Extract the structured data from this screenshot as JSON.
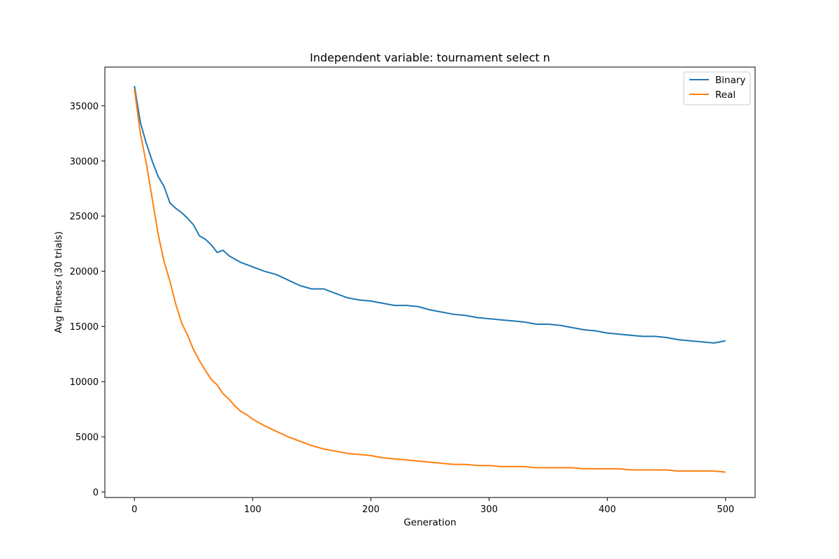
{
  "chart_data": {
    "type": "line",
    "title": "Independent variable: tournament select n",
    "xlabel": "Generation",
    "ylabel": "Avg Fitness (30 trials)",
    "xlim": [
      -25,
      525
    ],
    "ylim": [
      -500,
      38500
    ],
    "xticks": [
      0,
      100,
      200,
      300,
      400,
      500
    ],
    "yticks": [
      0,
      5000,
      10000,
      15000,
      20000,
      25000,
      30000,
      35000
    ],
    "grid": false,
    "legend_position": "top-right",
    "series": [
      {
        "name": "Binary",
        "color": "#1f77b4",
        "x": [
          0,
          5,
          10,
          15,
          20,
          25,
          30,
          35,
          40,
          45,
          50,
          55,
          60,
          65,
          70,
          75,
          80,
          85,
          90,
          95,
          100,
          110,
          120,
          130,
          140,
          150,
          160,
          170,
          180,
          190,
          200,
          210,
          220,
          230,
          240,
          250,
          260,
          270,
          280,
          290,
          300,
          310,
          320,
          330,
          340,
          350,
          360,
          370,
          380,
          390,
          400,
          410,
          420,
          430,
          440,
          450,
          460,
          470,
          480,
          490,
          500
        ],
        "y": [
          36800,
          33500,
          31600,
          30000,
          28600,
          27700,
          26200,
          25700,
          25300,
          24800,
          24200,
          23200,
          22900,
          22400,
          21700,
          21900,
          21400,
          21100,
          20800,
          20600,
          20400,
          20000,
          19700,
          19200,
          18700,
          18400,
          18400,
          18000,
          17600,
          17400,
          17300,
          17100,
          16900,
          16900,
          16800,
          16500,
          16300,
          16100,
          16000,
          15800,
          15700,
          15600,
          15500,
          15400,
          15200,
          15200,
          15100,
          14900,
          14700,
          14600,
          14400,
          14300,
          14200,
          14100,
          14100,
          14000,
          13800,
          13700,
          13600,
          13500,
          13700
        ]
      },
      {
        "name": "Real",
        "color": "#ff7f0e",
        "x": [
          0,
          5,
          10,
          15,
          20,
          25,
          30,
          35,
          40,
          45,
          50,
          55,
          60,
          65,
          70,
          75,
          80,
          85,
          90,
          95,
          100,
          110,
          120,
          130,
          140,
          150,
          160,
          170,
          180,
          190,
          200,
          210,
          220,
          230,
          240,
          250,
          260,
          270,
          280,
          290,
          300,
          310,
          320,
          330,
          340,
          350,
          360,
          370,
          380,
          390,
          400,
          410,
          420,
          430,
          440,
          450,
          460,
          470,
          480,
          490,
          500
        ],
        "y": [
          36500,
          32500,
          29800,
          26600,
          23400,
          20900,
          19100,
          17000,
          15300,
          14200,
          12900,
          11900,
          11000,
          10200,
          9700,
          8900,
          8400,
          7800,
          7300,
          7000,
          6600,
          6000,
          5500,
          5000,
          4600,
          4200,
          3900,
          3700,
          3500,
          3400,
          3300,
          3100,
          3000,
          2900,
          2800,
          2700,
          2600,
          2500,
          2500,
          2400,
          2400,
          2300,
          2300,
          2300,
          2200,
          2200,
          2200,
          2200,
          2100,
          2100,
          2100,
          2100,
          2000,
          2000,
          2000,
          2000,
          1900,
          1900,
          1900,
          1900,
          1800
        ]
      }
    ]
  }
}
